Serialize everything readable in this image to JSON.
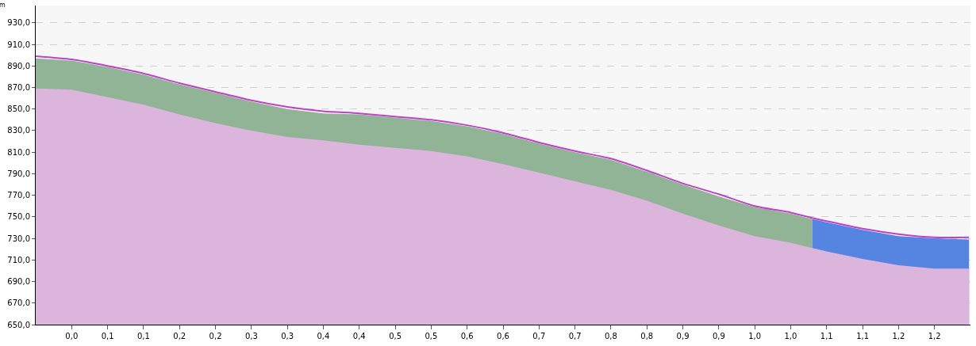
{
  "chart_data": {
    "type": "area",
    "ylabel": "m",
    "x": [
      -0.05,
      0,
      0.05,
      0.1,
      0.15,
      0.2,
      0.25,
      0.3,
      0.35,
      0.4,
      0.45,
      0.5,
      0.55,
      0.6,
      0.65,
      0.7,
      0.75,
      0.8,
      0.85,
      0.9,
      0.95,
      1.0,
      1.03,
      1.03,
      1.05,
      1.1,
      1.15,
      1.2,
      1.248
    ],
    "series": [
      {
        "color": "#92b496",
        "values": [
          897,
          895,
          889,
          882,
          873,
          865,
          857,
          850,
          846,
          845,
          842,
          839,
          834,
          827,
          818,
          810,
          803,
          792,
          780,
          769,
          759,
          753,
          748,
          null,
          null,
          null,
          null,
          null,
          null
        ]
      },
      {
        "color": "#5585e0",
        "values": [
          null,
          null,
          null,
          null,
          null,
          null,
          null,
          null,
          null,
          null,
          null,
          null,
          null,
          null,
          null,
          null,
          null,
          null,
          null,
          null,
          null,
          null,
          null,
          748,
          745,
          738,
          732,
          730,
          729
        ]
      },
      {
        "color": "#dbb5dc",
        "values": [
          869,
          868,
          861,
          854,
          845,
          837,
          830,
          824,
          821,
          817,
          814,
          811,
          806,
          799,
          791,
          783,
          775,
          765,
          753,
          742,
          732,
          726,
          721,
          721,
          718,
          711,
          705,
          702,
          702
        ]
      },
      {
        "type": "line",
        "color": "#c040c8",
        "values": [
          899,
          896,
          890,
          883,
          874,
          866,
          858,
          852,
          848,
          846,
          843,
          840,
          835,
          828,
          819,
          811,
          804,
          793,
          781,
          771,
          760,
          754,
          749,
          749,
          746,
          739,
          734,
          731,
          731
        ]
      }
    ],
    "xlim": [
      -0.05,
      1.25
    ],
    "xticks": [
      {
        "value": 0,
        "label": "0,0"
      },
      {
        "value": 0.05,
        "label": "0,1"
      },
      {
        "value": 0.1,
        "label": "0,1"
      },
      {
        "value": 0.15,
        "label": "0,2"
      },
      {
        "value": 0.2,
        "label": "0,2"
      },
      {
        "value": 0.25,
        "label": "0,3"
      },
      {
        "value": 0.3,
        "label": "0,3"
      },
      {
        "value": 0.35,
        "label": "0,4"
      },
      {
        "value": 0.4,
        "label": "0,4"
      },
      {
        "value": 0.45,
        "label": "0,5"
      },
      {
        "value": 0.5,
        "label": "0,5"
      },
      {
        "value": 0.55,
        "label": "0,6"
      },
      {
        "value": 0.6,
        "label": "0,6"
      },
      {
        "value": 0.65,
        "label": "0,7"
      },
      {
        "value": 0.7,
        "label": "0,7"
      },
      {
        "value": 0.75,
        "label": "0,8"
      },
      {
        "value": 0.8,
        "label": "0,8"
      },
      {
        "value": 0.85,
        "label": "0,9"
      },
      {
        "value": 0.9,
        "label": "0,9"
      },
      {
        "value": 0.95,
        "label": "1,0"
      },
      {
        "value": 1.0,
        "label": "1,0"
      },
      {
        "value": 1.05,
        "label": "1,1"
      },
      {
        "value": 1.1,
        "label": "1,1"
      },
      {
        "value": 1.15,
        "label": "1,2"
      },
      {
        "value": 1.2,
        "label": "1,2"
      }
    ],
    "ylim": [
      650,
      946
    ],
    "yticks": [
      {
        "value": 650,
        "label": "650,0"
      },
      {
        "value": 670,
        "label": "670,0"
      },
      {
        "value": 690,
        "label": "690,0"
      },
      {
        "value": 710,
        "label": "710,0"
      },
      {
        "value": 730,
        "label": "730,0"
      },
      {
        "value": 750,
        "label": "750,0"
      },
      {
        "value": 770,
        "label": "770,0"
      },
      {
        "value": 790,
        "label": "790,0"
      },
      {
        "value": 810,
        "label": "810,0"
      },
      {
        "value": 830,
        "label": "830,0"
      },
      {
        "value": 850,
        "label": "850,0"
      },
      {
        "value": 870,
        "label": "870,0"
      },
      {
        "value": 890,
        "label": "890,0"
      },
      {
        "value": 910,
        "label": "910,0"
      },
      {
        "value": 930,
        "label": "930,0"
      }
    ],
    "grid": "y",
    "line_style": "solid",
    "marker": "none"
  }
}
